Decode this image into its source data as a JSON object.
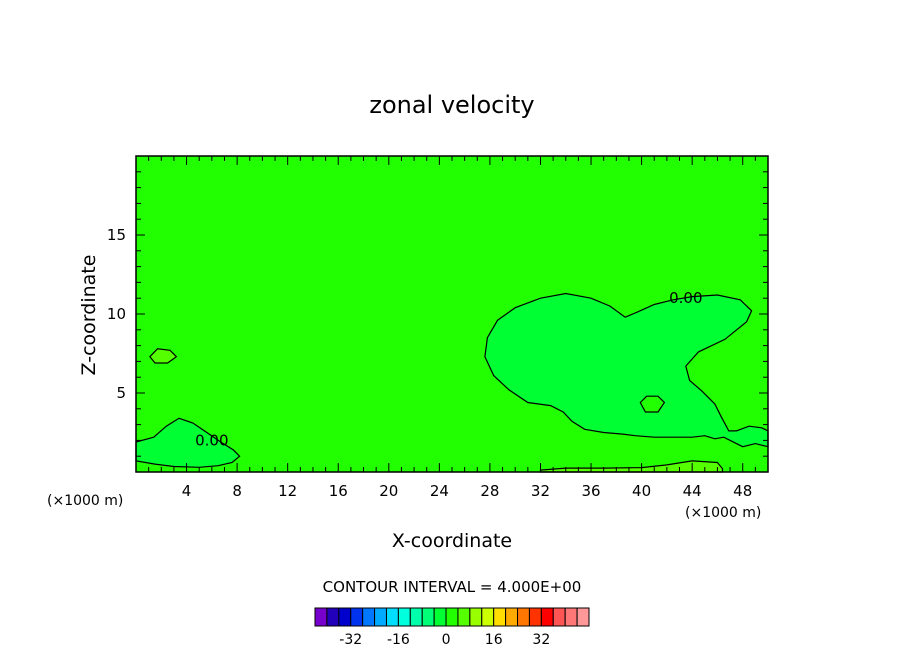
{
  "chart_data": {
    "type": "heatmap",
    "title": "zonal velocity",
    "xlabel": "X-coordinate",
    "ylabel": "Z-coordinate",
    "x_unit_left": "(×1000 m)",
    "x_unit_right": "(×1000 m)",
    "xlim": [
      0,
      50
    ],
    "ylim": [
      0,
      20
    ],
    "x_ticks": [
      {
        "value": 4,
        "label": "4"
      },
      {
        "value": 8,
        "label": "8"
      },
      {
        "value": 12,
        "label": "12"
      },
      {
        "value": 16,
        "label": "16"
      },
      {
        "value": 20,
        "label": "20"
      },
      {
        "value": 24,
        "label": "24"
      },
      {
        "value": 28,
        "label": "28"
      },
      {
        "value": 32,
        "label": "32"
      },
      {
        "value": 36,
        "label": "36"
      },
      {
        "value": 40,
        "label": "40"
      },
      {
        "value": 44,
        "label": "44"
      },
      {
        "value": 48,
        "label": "48"
      }
    ],
    "y_ticks": [
      {
        "value": 5,
        "label": "5"
      },
      {
        "value": 10,
        "label": "10"
      },
      {
        "value": 15,
        "label": "15"
      }
    ],
    "background_color": "#22ff00",
    "regions": [
      {
        "id": "east-positive-lobe",
        "color": "#00ff33",
        "label": "0.00",
        "label_at": [
          43.5,
          11.0
        ],
        "points": [
          [
            27.8,
            8.5
          ],
          [
            28.6,
            9.6
          ],
          [
            30,
            10.4
          ],
          [
            32,
            11
          ],
          [
            34,
            11.3
          ],
          [
            36,
            11
          ],
          [
            37.5,
            10.5
          ],
          [
            38.7,
            9.8
          ],
          [
            39.6,
            10.1
          ],
          [
            41,
            10.6
          ],
          [
            42.5,
            10.9
          ],
          [
            44,
            11.1
          ],
          [
            46,
            11.2
          ],
          [
            47.8,
            10.9
          ],
          [
            48.7,
            10.2
          ],
          [
            48.3,
            9.5
          ],
          [
            46.6,
            8.4
          ],
          [
            44.5,
            7.6
          ],
          [
            43.5,
            6.7
          ],
          [
            43.8,
            5.8
          ],
          [
            44.8,
            5.1
          ],
          [
            45.8,
            4.3
          ],
          [
            46.3,
            3.5
          ],
          [
            46.9,
            2.6
          ],
          [
            47.5,
            2.6
          ],
          [
            48.5,
            2.9
          ],
          [
            49.5,
            2.8
          ],
          [
            50,
            2.6
          ],
          [
            50,
            1.6
          ],
          [
            49,
            1.8
          ],
          [
            48,
            1.6
          ],
          [
            46.5,
            2.2
          ],
          [
            45.8,
            2.1
          ],
          [
            45,
            2.3
          ],
          [
            44,
            2.2
          ],
          [
            42.5,
            2.2
          ],
          [
            41,
            2.2
          ],
          [
            39.5,
            2.3
          ],
          [
            38.5,
            2.4
          ],
          [
            37,
            2.5
          ],
          [
            35.5,
            2.7
          ],
          [
            34.5,
            3.2
          ],
          [
            33.8,
            3.8
          ],
          [
            32.8,
            4.2
          ],
          [
            31,
            4.4
          ],
          [
            29.5,
            5.2
          ],
          [
            28.3,
            6.1
          ],
          [
            27.6,
            7.3
          ]
        ]
      },
      {
        "id": "west-positive-lobe",
        "color": "#00ff33",
        "label": "0.00",
        "label_at": [
          6.0,
          2.0
        ],
        "points": [
          [
            0,
            1.9
          ],
          [
            1.4,
            2.2
          ],
          [
            2.4,
            2.9
          ],
          [
            3.4,
            3.4
          ],
          [
            4.5,
            3.1
          ],
          [
            5.6,
            2.5
          ],
          [
            6.7,
            1.9
          ],
          [
            7.7,
            1.4
          ],
          [
            8.2,
            1.0
          ],
          [
            7.6,
            0.6
          ],
          [
            6.5,
            0.4
          ],
          [
            5,
            0.3
          ],
          [
            3,
            0.35
          ],
          [
            1.5,
            0.5
          ],
          [
            0,
            0.7
          ]
        ]
      },
      {
        "id": "small-island-40",
        "color": "#22ff00",
        "points": [
          [
            39.9,
            4.4
          ],
          [
            40.4,
            4.8
          ],
          [
            41.3,
            4.8
          ],
          [
            41.8,
            4.4
          ],
          [
            41.3,
            3.8
          ],
          [
            40.3,
            3.8
          ]
        ]
      },
      {
        "id": "small-patch-2-7",
        "color": "#55ff00",
        "points": [
          [
            1.1,
            7.3
          ],
          [
            1.7,
            7.8
          ],
          [
            2.7,
            7.7
          ],
          [
            3.2,
            7.3
          ],
          [
            2.5,
            6.9
          ],
          [
            1.5,
            6.9
          ]
        ]
      },
      {
        "id": "bottom-strip-east",
        "color": "#55ff00",
        "points": [
          [
            32,
            0.12
          ],
          [
            34,
            0.25
          ],
          [
            37,
            0.25
          ],
          [
            40,
            0.28
          ],
          [
            42,
            0.45
          ],
          [
            44,
            0.7
          ],
          [
            46,
            0.6
          ],
          [
            46.4,
            0.2
          ],
          [
            46.4,
            0.0
          ],
          [
            32,
            0.0
          ]
        ]
      }
    ],
    "contour_label": "CONTOUR INTERVAL = 4.000E+00",
    "colorbar": {
      "colors": [
        "#7700cc",
        "#2200bb",
        "#0000cc",
        "#0033ee",
        "#0077ff",
        "#00aaff",
        "#00ddff",
        "#00ffdd",
        "#00ffaa",
        "#00ff77",
        "#00ff33",
        "#22ff00",
        "#55ff00",
        "#99ff00",
        "#ccff00",
        "#ffdd00",
        "#ffaa00",
        "#ff7700",
        "#ff3300",
        "#ff0000",
        "#ff5555",
        "#ff7777",
        "#ff9999"
      ],
      "value_min": -44,
      "value_max": 48,
      "tick_labels": [
        {
          "value": -32,
          "label": "-32"
        },
        {
          "value": -16,
          "label": "-16"
        },
        {
          "value": 0,
          "label": "0"
        },
        {
          "value": 16,
          "label": "16"
        },
        {
          "value": 32,
          "label": "32"
        }
      ]
    }
  }
}
